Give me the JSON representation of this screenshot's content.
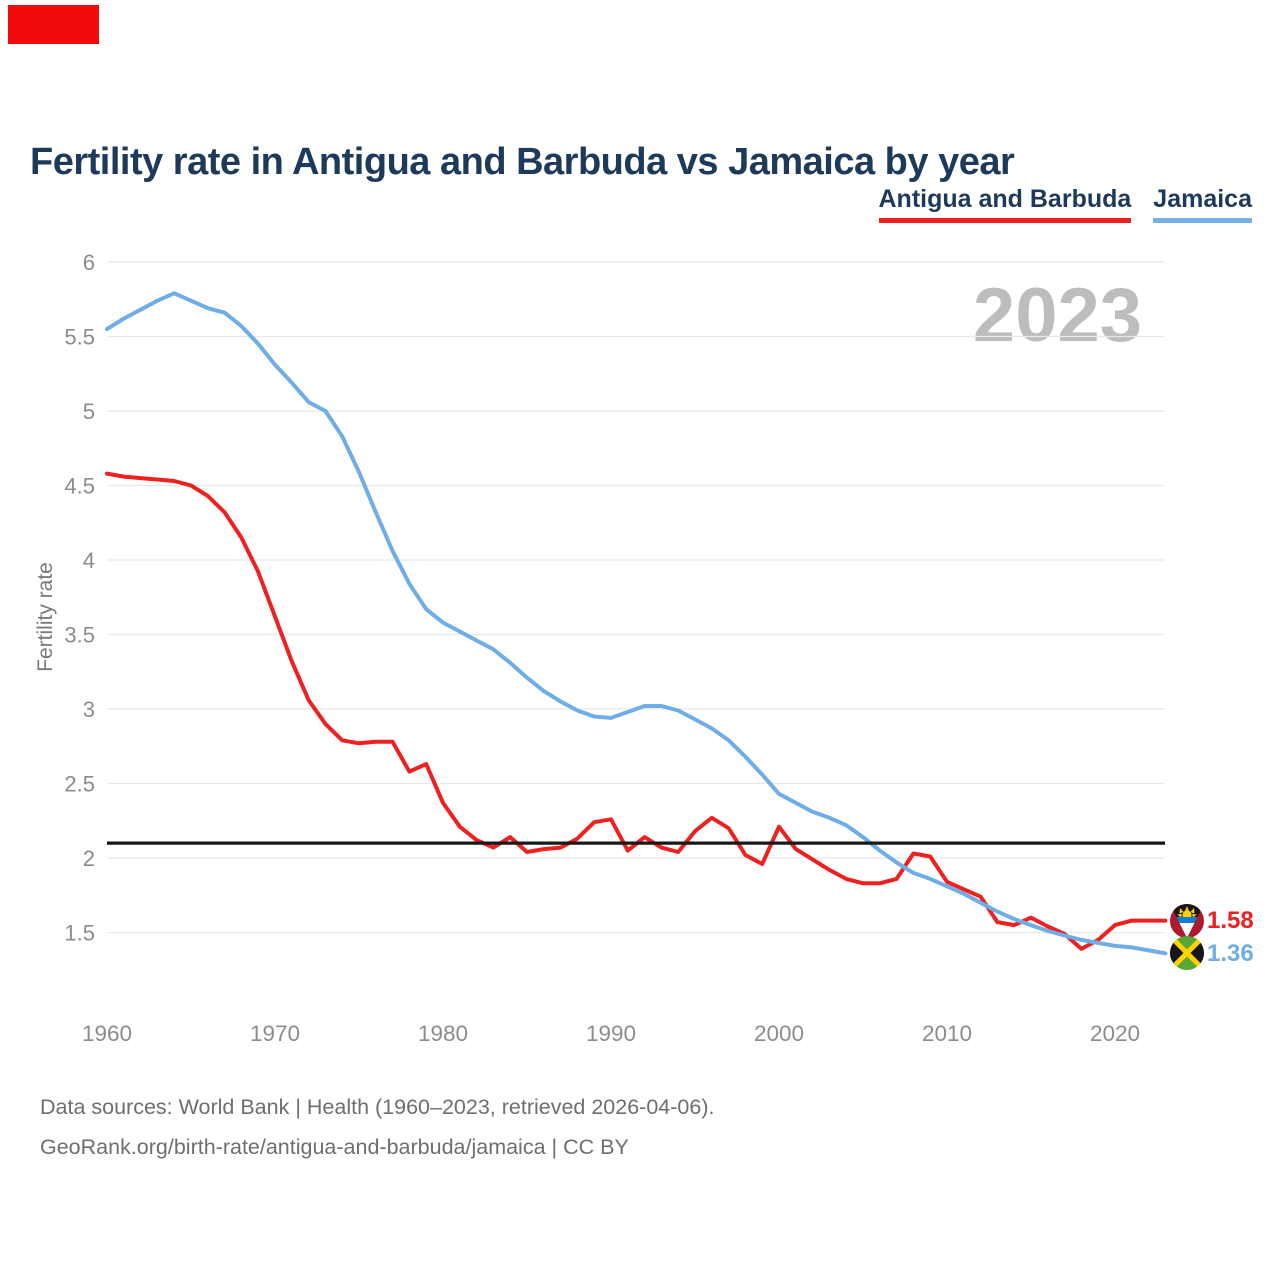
{
  "header": {
    "title": "Fertility rate in Antigua and Barbuda vs Jamaica by year",
    "watermark_year": "2023"
  },
  "legend": {
    "items": [
      {
        "label": "Antigua and Barbuda",
        "color": "#ee2020"
      },
      {
        "label": "Jamaica",
        "color": "#74b1e8"
      }
    ]
  },
  "footer": {
    "line1": "Data sources: World Bank | Health (1960–2023, retrieved 2026-04-06).",
    "line2": "GeoRank.org/birth-rate/antigua-and-barbuda/jamaica | CC BY"
  },
  "colors": {
    "title_text": "#1e3a5a",
    "axis_text": "#8c8c8c",
    "gridline": "#e8e8e8",
    "reference_line": "#181818",
    "watermark": "#bdbdbd",
    "top_left_block": "#f20b0b"
  },
  "chart_data": {
    "type": "line",
    "title": "Fertility rate in Antigua and Barbuda vs Jamaica by year",
    "xlabel": "",
    "ylabel": "Fertility rate",
    "grid": "horizontal",
    "legend_position": "top-right",
    "x_start": 1960,
    "x_end": 2023,
    "x_step": 1,
    "x_ticks": [
      1960,
      1970,
      1980,
      1990,
      2000,
      2010,
      2020
    ],
    "y_tick_labels": [
      "6",
      "5.5",
      "5",
      "4.5",
      "4",
      "3.5",
      "3",
      "2.5",
      "2",
      "1.5"
    ],
    "y_tick_values": [
      6,
      5.5,
      5,
      4.5,
      4,
      3.5,
      3,
      2.5,
      2,
      1.5
    ],
    "ylim": [
      1.15,
      6.1
    ],
    "reference_line_y": 2.1,
    "series": [
      {
        "name": "Antigua and Barbuda",
        "color": "#ee2020",
        "end_label": "1.58",
        "flag_icon": "antigua-and-barbuda-flag",
        "values": [
          4.58,
          4.56,
          4.55,
          4.54,
          4.53,
          4.5,
          4.43,
          4.32,
          4.15,
          3.92,
          3.62,
          3.32,
          3.06,
          2.9,
          2.79,
          2.77,
          2.78,
          2.78,
          2.58,
          2.63,
          2.37,
          2.21,
          2.12,
          2.07,
          2.14,
          2.04,
          2.06,
          2.07,
          2.13,
          2.24,
          2.26,
          2.05,
          2.14,
          2.07,
          2.04,
          2.18,
          2.27,
          2.2,
          2.02,
          1.96,
          2.21,
          2.06,
          1.99,
          1.92,
          1.86,
          1.83,
          1.83,
          1.86,
          2.03,
          2.01,
          1.84,
          1.79,
          1.74,
          1.57,
          1.55,
          1.6,
          1.54,
          1.49,
          1.39,
          1.45,
          1.55,
          1.58,
          1.58,
          1.58
        ]
      },
      {
        "name": "Jamaica",
        "color": "#6fade6",
        "end_label": "1.36",
        "flag_icon": "jamaica-flag",
        "values": [
          5.55,
          5.62,
          5.68,
          5.74,
          5.79,
          5.74,
          5.69,
          5.66,
          5.57,
          5.45,
          5.31,
          5.19,
          5.06,
          5.0,
          4.83,
          4.59,
          4.32,
          4.06,
          3.84,
          3.67,
          3.58,
          3.52,
          3.46,
          3.4,
          3.31,
          3.21,
          3.12,
          3.05,
          2.99,
          2.95,
          2.94,
          2.98,
          3.02,
          3.02,
          2.99,
          2.93,
          2.87,
          2.79,
          2.68,
          2.56,
          2.43,
          2.37,
          2.31,
          2.27,
          2.22,
          2.14,
          2.05,
          1.97,
          1.9,
          1.86,
          1.81,
          1.76,
          1.7,
          1.64,
          1.59,
          1.55,
          1.51,
          1.48,
          1.45,
          1.43,
          1.41,
          1.4,
          1.38,
          1.36
        ]
      }
    ]
  }
}
